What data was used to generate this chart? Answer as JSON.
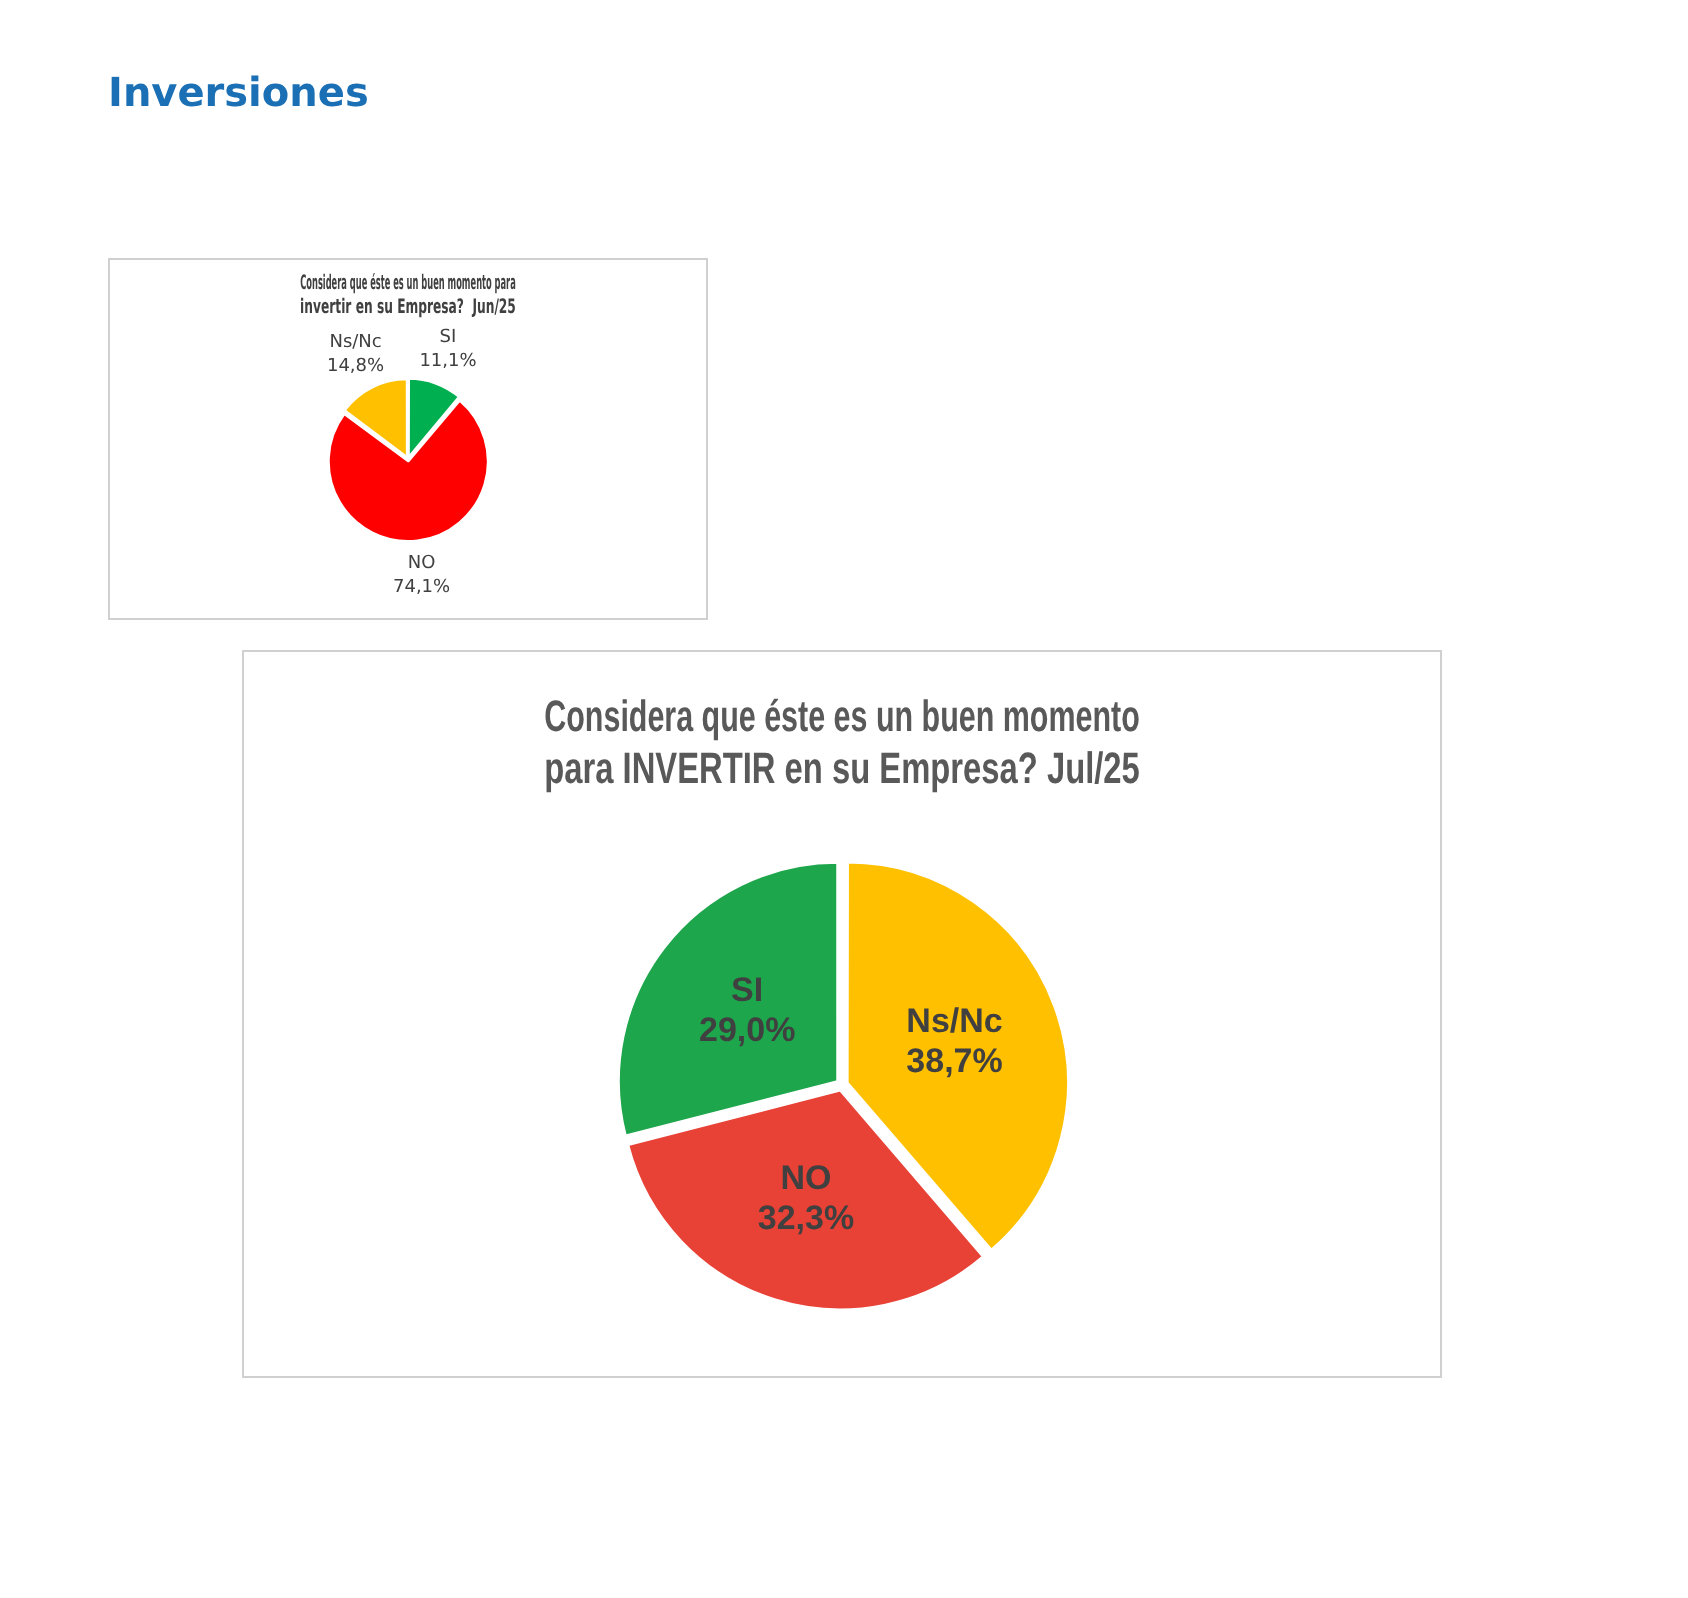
{
  "chart_data": [
    {
      "type": "pie",
      "title": "Considera que éste es un buen momento para invertir en su Empresa?  Jun/25",
      "annotations": [
        "Inversiones"
      ],
      "categories": [
        "SI",
        "NO",
        "Ns/Nc"
      ],
      "values": [
        11.1,
        74.1,
        14.8
      ],
      "colors": [
        "#00b050",
        "#ff0000",
        "#ffc000"
      ],
      "value_labels": [
        "11,1%",
        "74,1%",
        "14,8%"
      ],
      "legend": false
    },
    {
      "type": "pie",
      "title": "Considera que éste es un buen momento para INVERTIR en su Empresa? Jul/25",
      "categories": [
        "Ns/Nc",
        "NO",
        "SI"
      ],
      "values": [
        38.7,
        32.3,
        29.0
      ],
      "colors": [
        "#ffc000",
        "#e84136",
        "#1ea64c"
      ],
      "value_labels": [
        "38,7%",
        "32,3%",
        "29,0%"
      ],
      "legend": false
    }
  ]
}
